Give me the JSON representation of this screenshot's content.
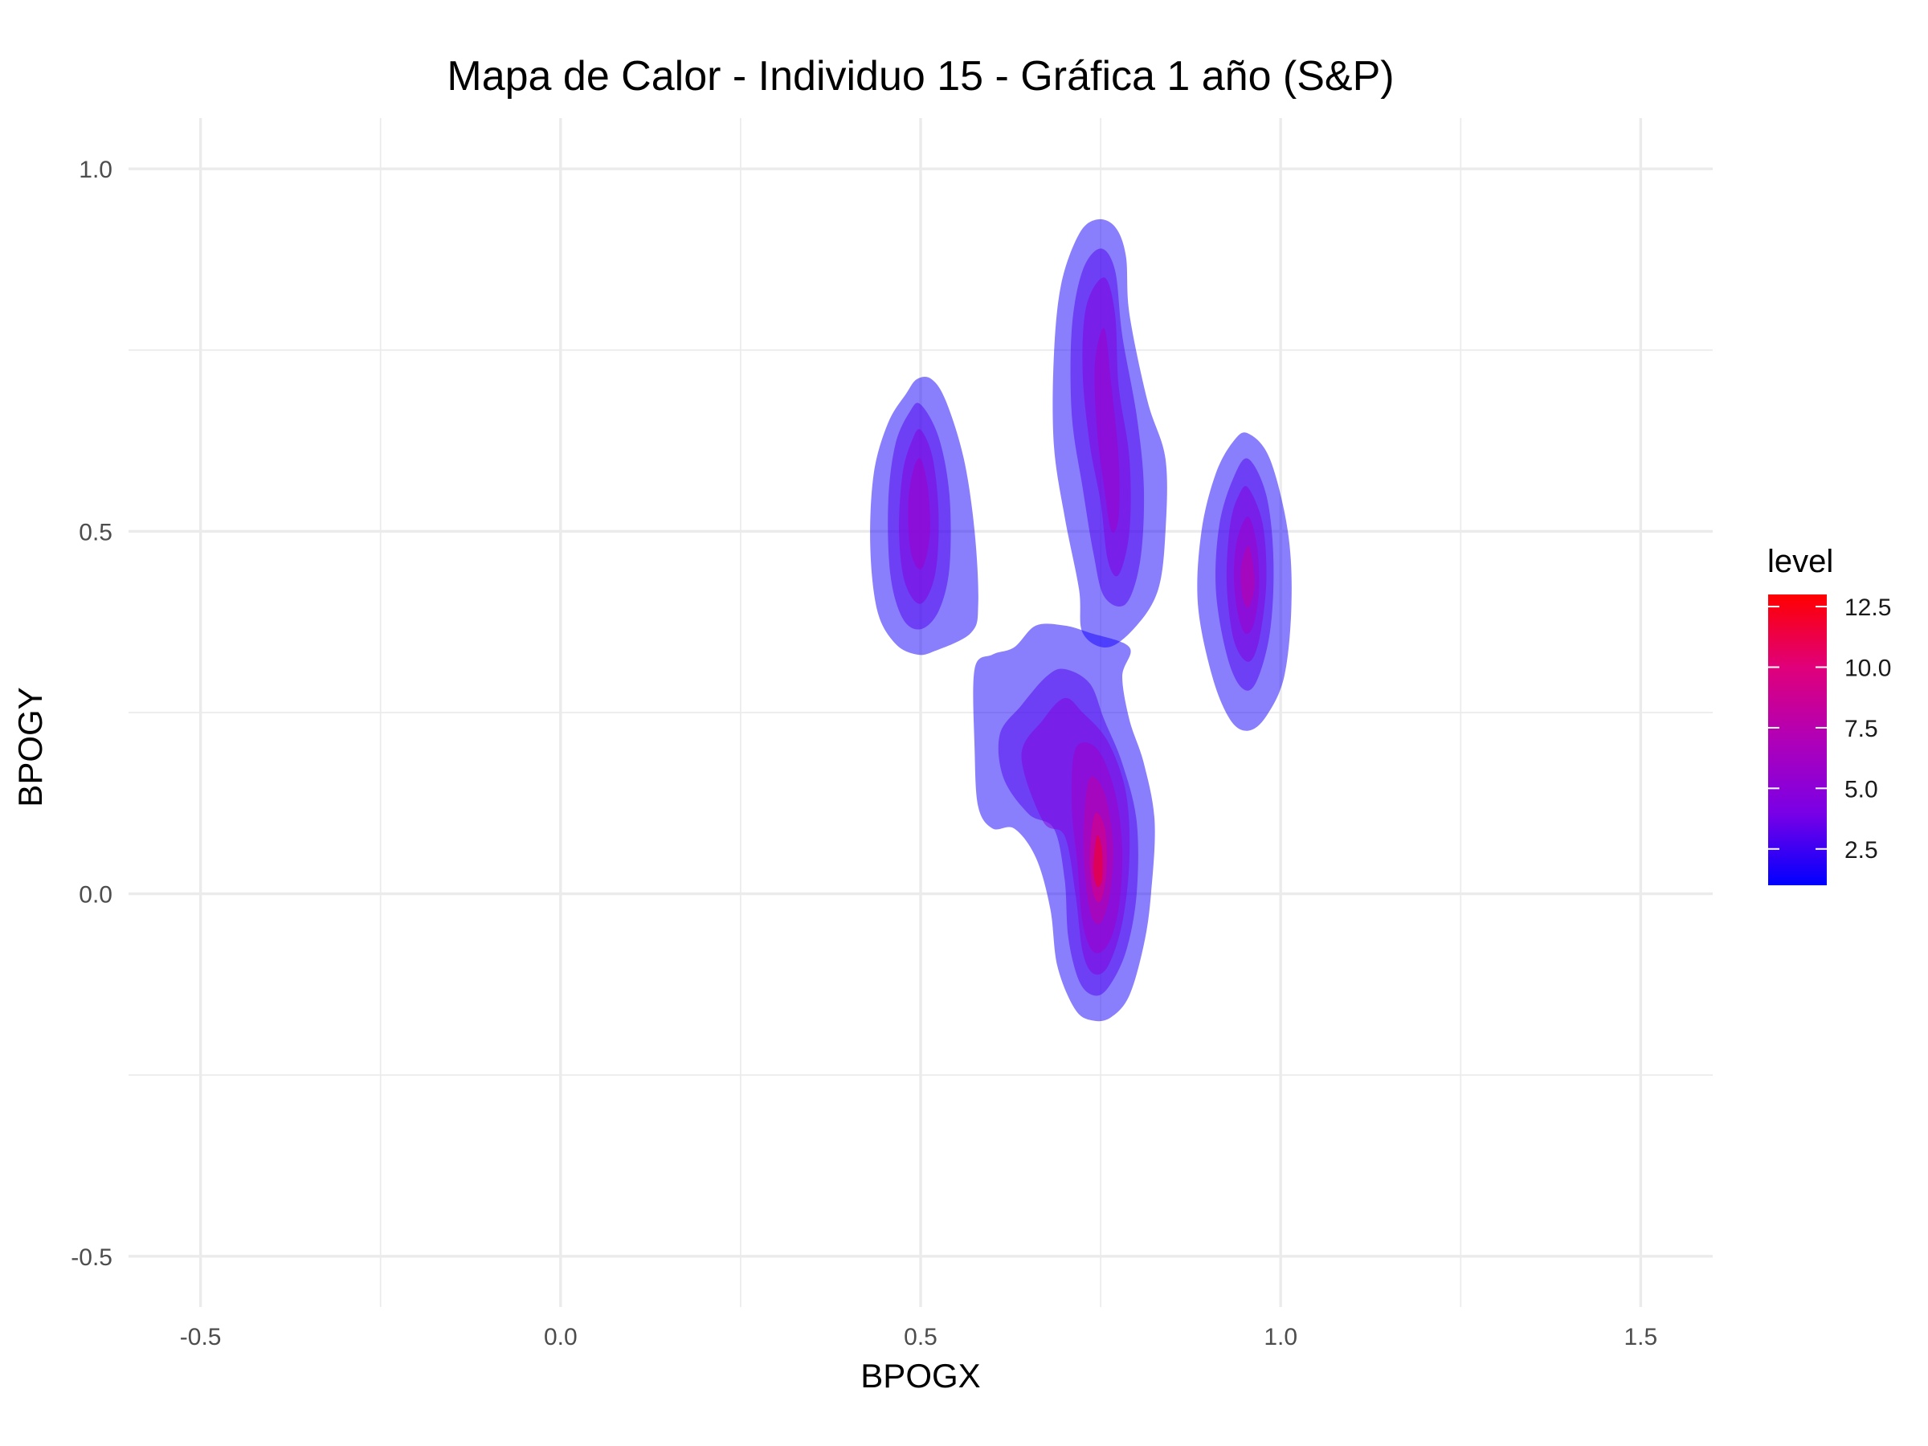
{
  "chart_data": {
    "type": "heatmap",
    "subtype": "2d-density-filled-contour",
    "title": "Mapa de Calor - Individuo 15 - Gráfica 1 año (S&P)",
    "xlabel": "BPOGX",
    "ylabel": "BPOGY",
    "xlim": [
      -0.6,
      1.6
    ],
    "ylim": [
      -0.57,
      1.07
    ],
    "x_ticks": [
      -0.5,
      0.0,
      0.5,
      1.0,
      1.5
    ],
    "x_tick_labels": [
      "-0.5",
      "0.0",
      "0.5",
      "1.0",
      "1.5"
    ],
    "y_ticks": [
      -0.5,
      0.0,
      0.5,
      1.0
    ],
    "y_tick_labels": [
      "-0.5",
      "0.0",
      "0.5",
      "1.0"
    ],
    "grid": true,
    "legend": {
      "title": "level",
      "position": "right",
      "range": [
        1.0,
        13.0
      ],
      "ticks": [
        2.5,
        5.0,
        7.5,
        10.0,
        12.5
      ],
      "tick_labels": [
        "2.5",
        "5.0",
        "7.5",
        "10.0",
        "12.5"
      ],
      "low_color": "#0000ff",
      "high_color": "#ff0000",
      "fill_opacity": 0.5
    },
    "clusters": [
      {
        "center_x": 0.5,
        "center_y": 0.52,
        "peak_level": 6.0,
        "extent_x": [
          0.43,
          0.58
        ],
        "extent_y": [
          0.33,
          0.71
        ]
      },
      {
        "center_x": 0.77,
        "center_y": 0.6,
        "peak_level": 6.5,
        "extent_x": [
          0.68,
          0.84
        ],
        "extent_y": [
          0.34,
          0.93
        ]
      },
      {
        "center_x": 0.95,
        "center_y": 0.44,
        "peak_level": 8.0,
        "extent_x": [
          0.88,
          1.02
        ],
        "extent_y": [
          0.22,
          0.63
        ]
      },
      {
        "center_x": 0.74,
        "center_y": 0.05,
        "peak_level": 12.5,
        "extent_x": [
          0.58,
          0.82
        ],
        "extent_y": [
          -0.17,
          0.37
        ]
      }
    ],
    "contour_levels": [
      {
        "cluster": 0,
        "level": 1.5,
        "points": [
          [
            0.515,
            0.71
          ],
          [
            0.535,
            0.68
          ],
          [
            0.56,
            0.6
          ],
          [
            0.575,
            0.5
          ],
          [
            0.58,
            0.4
          ],
          [
            0.57,
            0.36
          ],
          [
            0.52,
            0.335
          ],
          [
            0.495,
            0.33
          ],
          [
            0.465,
            0.345
          ],
          [
            0.44,
            0.39
          ],
          [
            0.43,
            0.48
          ],
          [
            0.435,
            0.58
          ],
          [
            0.455,
            0.65
          ],
          [
            0.48,
            0.69
          ],
          [
            0.495,
            0.71
          ]
        ]
      },
      {
        "cluster": 0,
        "level": 3.0,
        "points": [
          [
            0.5,
            0.675
          ],
          [
            0.525,
            0.63
          ],
          [
            0.54,
            0.55
          ],
          [
            0.54,
            0.45
          ],
          [
            0.525,
            0.39
          ],
          [
            0.5,
            0.365
          ],
          [
            0.475,
            0.38
          ],
          [
            0.458,
            0.44
          ],
          [
            0.455,
            0.54
          ],
          [
            0.465,
            0.62
          ],
          [
            0.485,
            0.665
          ]
        ]
      },
      {
        "cluster": 0,
        "level": 4.5,
        "points": [
          [
            0.5,
            0.64
          ],
          [
            0.517,
            0.6
          ],
          [
            0.525,
            0.52
          ],
          [
            0.52,
            0.44
          ],
          [
            0.5,
            0.4
          ],
          [
            0.478,
            0.43
          ],
          [
            0.47,
            0.5
          ],
          [
            0.475,
            0.58
          ],
          [
            0.488,
            0.625
          ]
        ]
      },
      {
        "cluster": 0,
        "level": 6.0,
        "points": [
          [
            0.5,
            0.6
          ],
          [
            0.51,
            0.56
          ],
          [
            0.513,
            0.5
          ],
          [
            0.505,
            0.455
          ],
          [
            0.495,
            0.45
          ],
          [
            0.485,
            0.48
          ],
          [
            0.483,
            0.54
          ],
          [
            0.49,
            0.585
          ]
        ]
      },
      {
        "cluster": 1,
        "level": 1.5,
        "points": [
          [
            0.745,
            0.93
          ],
          [
            0.77,
            0.92
          ],
          [
            0.785,
            0.88
          ],
          [
            0.79,
            0.8
          ],
          [
            0.815,
            0.68
          ],
          [
            0.84,
            0.6
          ],
          [
            0.84,
            0.5
          ],
          [
            0.83,
            0.42
          ],
          [
            0.8,
            0.37
          ],
          [
            0.76,
            0.34
          ],
          [
            0.725,
            0.36
          ],
          [
            0.72,
            0.42
          ],
          [
            0.7,
            0.52
          ],
          [
            0.685,
            0.62
          ],
          [
            0.685,
            0.74
          ],
          [
            0.695,
            0.84
          ],
          [
            0.72,
            0.91
          ]
        ]
      },
      {
        "cluster": 1,
        "level": 3.0,
        "points": [
          [
            0.75,
            0.89
          ],
          [
            0.77,
            0.86
          ],
          [
            0.78,
            0.77
          ],
          [
            0.8,
            0.66
          ],
          [
            0.81,
            0.56
          ],
          [
            0.805,
            0.46
          ],
          [
            0.785,
            0.4
          ],
          [
            0.755,
            0.41
          ],
          [
            0.74,
            0.47
          ],
          [
            0.725,
            0.56
          ],
          [
            0.71,
            0.66
          ],
          [
            0.71,
            0.78
          ],
          [
            0.725,
            0.86
          ]
        ]
      },
      {
        "cluster": 1,
        "level": 4.5,
        "points": [
          [
            0.755,
            0.85
          ],
          [
            0.77,
            0.8
          ],
          [
            0.775,
            0.7
          ],
          [
            0.79,
            0.6
          ],
          [
            0.79,
            0.5
          ],
          [
            0.775,
            0.44
          ],
          [
            0.76,
            0.46
          ],
          [
            0.75,
            0.54
          ],
          [
            0.735,
            0.62
          ],
          [
            0.725,
            0.72
          ],
          [
            0.73,
            0.81
          ]
        ]
      },
      {
        "cluster": 1,
        "level": 6.0,
        "points": [
          [
            0.755,
            0.78
          ],
          [
            0.765,
            0.7
          ],
          [
            0.775,
            0.6
          ],
          [
            0.775,
            0.52
          ],
          [
            0.765,
            0.5
          ],
          [
            0.755,
            0.56
          ],
          [
            0.745,
            0.64
          ],
          [
            0.742,
            0.73
          ]
        ]
      },
      {
        "cluster": 2,
        "level": 1.5,
        "points": [
          [
            0.955,
            0.635
          ],
          [
            0.985,
            0.6
          ],
          [
            1.01,
            0.5
          ],
          [
            1.015,
            0.4
          ],
          [
            1.005,
            0.3
          ],
          [
            0.98,
            0.245
          ],
          [
            0.955,
            0.225
          ],
          [
            0.93,
            0.24
          ],
          [
            0.905,
            0.3
          ],
          [
            0.885,
            0.4
          ],
          [
            0.89,
            0.5
          ],
          [
            0.91,
            0.58
          ],
          [
            0.935,
            0.625
          ]
        ]
      },
      {
        "cluster": 2,
        "level": 3.0,
        "points": [
          [
            0.955,
            0.6
          ],
          [
            0.98,
            0.55
          ],
          [
            0.99,
            0.46
          ],
          [
            0.985,
            0.36
          ],
          [
            0.965,
            0.29
          ],
          [
            0.945,
            0.285
          ],
          [
            0.925,
            0.33
          ],
          [
            0.91,
            0.42
          ],
          [
            0.915,
            0.51
          ],
          [
            0.935,
            0.575
          ]
        ]
      },
      {
        "cluster": 2,
        "level": 4.5,
        "points": [
          [
            0.955,
            0.56
          ],
          [
            0.975,
            0.51
          ],
          [
            0.98,
            0.43
          ],
          [
            0.97,
            0.35
          ],
          [
            0.955,
            0.32
          ],
          [
            0.935,
            0.35
          ],
          [
            0.925,
            0.43
          ],
          [
            0.93,
            0.51
          ],
          [
            0.942,
            0.55
          ]
        ]
      },
      {
        "cluster": 2,
        "level": 6.0,
        "points": [
          [
            0.955,
            0.52
          ],
          [
            0.967,
            0.48
          ],
          [
            0.97,
            0.42
          ],
          [
            0.962,
            0.37
          ],
          [
            0.95,
            0.36
          ],
          [
            0.94,
            0.39
          ],
          [
            0.935,
            0.44
          ],
          [
            0.94,
            0.49
          ]
        ]
      },
      {
        "cluster": 2,
        "level": 8.0,
        "points": [
          [
            0.955,
            0.48
          ],
          [
            0.962,
            0.45
          ],
          [
            0.963,
            0.42
          ],
          [
            0.955,
            0.395
          ],
          [
            0.947,
            0.41
          ],
          [
            0.945,
            0.45
          ]
        ]
      },
      {
        "cluster": 3,
        "level": 1.5,
        "points": [
          [
            0.575,
            0.31
          ],
          [
            0.6,
            0.33
          ],
          [
            0.63,
            0.34
          ],
          [
            0.66,
            0.37
          ],
          [
            0.7,
            0.37
          ],
          [
            0.735,
            0.36
          ],
          [
            0.79,
            0.34
          ],
          [
            0.78,
            0.3
          ],
          [
            0.79,
            0.24
          ],
          [
            0.81,
            0.18
          ],
          [
            0.825,
            0.1
          ],
          [
            0.82,
            0.0
          ],
          [
            0.81,
            -0.07
          ],
          [
            0.79,
            -0.14
          ],
          [
            0.765,
            -0.17
          ],
          [
            0.74,
            -0.175
          ],
          [
            0.715,
            -0.16
          ],
          [
            0.69,
            -0.1
          ],
          [
            0.68,
            -0.02
          ],
          [
            0.66,
            0.05
          ],
          [
            0.63,
            0.09
          ],
          [
            0.6,
            0.09
          ],
          [
            0.58,
            0.12
          ],
          [
            0.575,
            0.2
          ]
        ]
      },
      {
        "cluster": 3,
        "level": 3.0,
        "points": [
          [
            0.61,
            0.22
          ],
          [
            0.64,
            0.26
          ],
          [
            0.675,
            0.3
          ],
          [
            0.7,
            0.31
          ],
          [
            0.735,
            0.29
          ],
          [
            0.755,
            0.24
          ],
          [
            0.78,
            0.18
          ],
          [
            0.8,
            0.1
          ],
          [
            0.8,
            0.0
          ],
          [
            0.785,
            -0.08
          ],
          [
            0.76,
            -0.13
          ],
          [
            0.74,
            -0.14
          ],
          [
            0.72,
            -0.12
          ],
          [
            0.705,
            -0.06
          ],
          [
            0.7,
            0.02
          ],
          [
            0.685,
            0.09
          ],
          [
            0.65,
            0.11
          ],
          [
            0.615,
            0.16
          ]
        ]
      },
      {
        "cluster": 3,
        "level": 4.5,
        "points": [
          [
            0.64,
            0.19
          ],
          [
            0.67,
            0.24
          ],
          [
            0.7,
            0.27
          ],
          [
            0.725,
            0.25
          ],
          [
            0.76,
            0.21
          ],
          [
            0.785,
            0.14
          ],
          [
            0.79,
            0.05
          ],
          [
            0.78,
            -0.04
          ],
          [
            0.76,
            -0.1
          ],
          [
            0.74,
            -0.11
          ],
          [
            0.725,
            -0.08
          ],
          [
            0.715,
            0.0
          ],
          [
            0.7,
            0.08
          ],
          [
            0.67,
            0.1
          ]
        ]
      },
      {
        "cluster": 3,
        "level": 6.0,
        "points": [
          [
            0.715,
            0.2
          ],
          [
            0.745,
            0.2
          ],
          [
            0.77,
            0.14
          ],
          [
            0.78,
            0.06
          ],
          [
            0.775,
            -0.02
          ],
          [
            0.76,
            -0.07
          ],
          [
            0.74,
            -0.08
          ],
          [
            0.725,
            -0.04
          ],
          [
            0.718,
            0.04
          ],
          [
            0.71,
            0.12
          ]
        ]
      },
      {
        "cluster": 3,
        "level": 8.0,
        "points": [
          [
            0.735,
            0.16
          ],
          [
            0.755,
            0.14
          ],
          [
            0.767,
            0.07
          ],
          [
            0.763,
            0.0
          ],
          [
            0.75,
            -0.04
          ],
          [
            0.737,
            -0.03
          ],
          [
            0.728,
            0.03
          ],
          [
            0.727,
            0.1
          ]
        ]
      },
      {
        "cluster": 3,
        "level": 10.0,
        "points": [
          [
            0.742,
            0.11
          ],
          [
            0.756,
            0.09
          ],
          [
            0.758,
            0.03
          ],
          [
            0.75,
            -0.01
          ],
          [
            0.74,
            0.0
          ],
          [
            0.735,
            0.05
          ]
        ]
      },
      {
        "cluster": 3,
        "level": 12.5,
        "points": [
          [
            0.745,
            0.08
          ],
          [
            0.752,
            0.06
          ],
          [
            0.752,
            0.02
          ],
          [
            0.745,
            0.01
          ],
          [
            0.74,
            0.035
          ]
        ]
      }
    ]
  }
}
